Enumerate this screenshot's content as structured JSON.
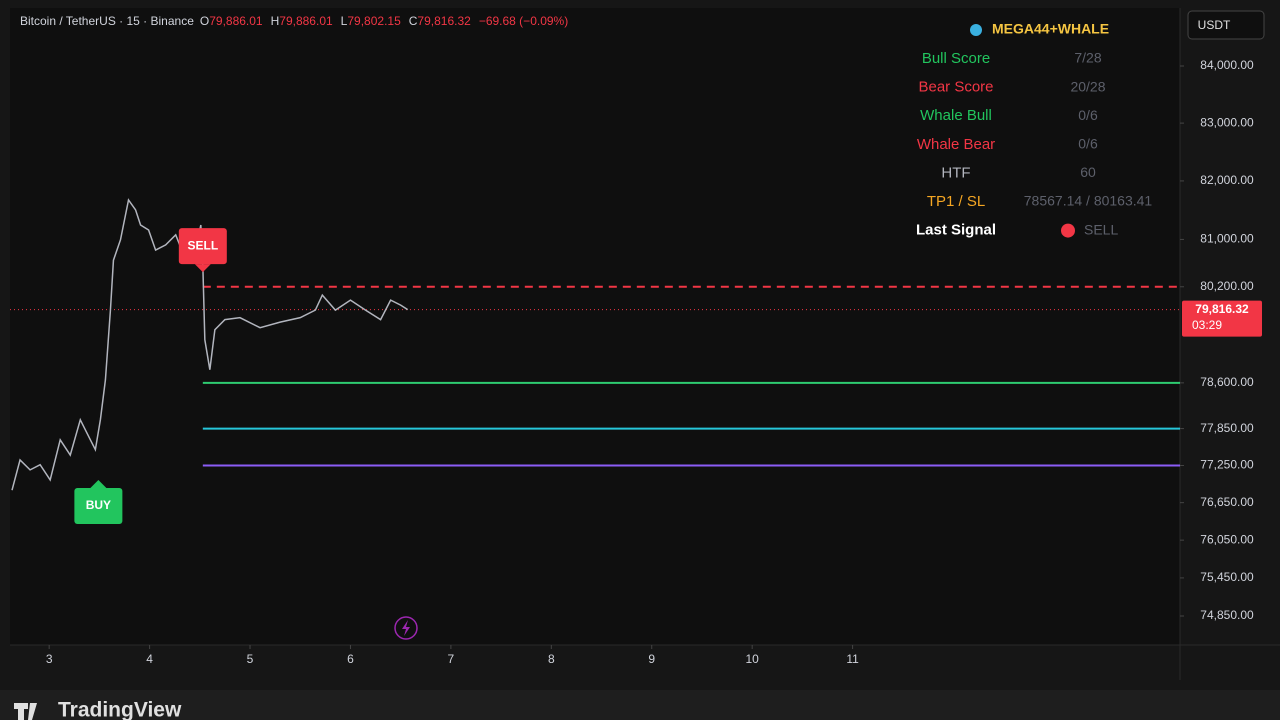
{
  "header": {
    "symbol": "Bitcoin / TetherUS · 15 · Binance",
    "ohlc": [
      {
        "key": "O",
        "value": "79,886.01"
      },
      {
        "key": "H",
        "value": "79,886.01"
      },
      {
        "key": "L",
        "value": "79,802.15"
      },
      {
        "key": "C",
        "value": "79,816.32"
      }
    ],
    "change": "−69.68 (−0.09%)"
  },
  "currency": "USDT",
  "panel": {
    "title": "MEGA44+WHALE",
    "rows": [
      {
        "label": "Bull Score",
        "value": "7/28",
        "color": "#22c55e"
      },
      {
        "label": "Bear Score",
        "value": "20/28",
        "color": "#f23645"
      },
      {
        "label": "Whale Bull",
        "value": "0/6",
        "color": "#22c55e"
      },
      {
        "label": "Whale Bear",
        "value": "0/6",
        "color": "#f23645"
      },
      {
        "label": "HTF",
        "value": "60",
        "color": "#b2b5be"
      },
      {
        "label": "TP1 / SL",
        "value": "78567.14 / 80163.41",
        "color": "#f5a623"
      },
      {
        "label": "Last Signal",
        "value": "SELL",
        "color": "#ffffff"
      }
    ]
  },
  "chart_data": {
    "type": "line",
    "log_scale": true,
    "xlim": [
      2.61,
      14.26
    ],
    "xticks": [
      3,
      4,
      5,
      6,
      7,
      8,
      9,
      10,
      11
    ],
    "ylim": [
      74396,
      85028
    ],
    "yticks": [
      {
        "value": 84000,
        "label": "84,000.00"
      },
      {
        "value": 83000,
        "label": "83,000.00"
      },
      {
        "value": 82000,
        "label": "82,000.00"
      },
      {
        "value": 81000,
        "label": "81,000.00"
      },
      {
        "value": 80200,
        "label": "80,200.00"
      },
      {
        "value": 78600,
        "label": "78,600.00"
      },
      {
        "value": 77850,
        "label": "77,850.00"
      },
      {
        "value": 77250,
        "label": "77,250.00"
      },
      {
        "value": 76650,
        "label": "76,650.00"
      },
      {
        "value": 76050,
        "label": "76,050.00"
      },
      {
        "value": 75450,
        "label": "75,450.00"
      },
      {
        "value": 74850,
        "label": "74,850.00"
      }
    ],
    "series": [
      {
        "color": "#b2b5be",
        "x": [
          2.63,
          2.71,
          2.81,
          2.91,
          3.01,
          3.11,
          3.21,
          3.31,
          3.41,
          3.46,
          3.51,
          3.56,
          3.61,
          3.64,
          3.71,
          3.79,
          3.86,
          3.91,
          3.99,
          4.06,
          4.16,
          4.26,
          4.36,
          4.46,
          4.51,
          4.53,
          4.55,
          4.6,
          4.65,
          4.75,
          4.9,
          5.1,
          5.3,
          5.5,
          5.65,
          5.72,
          5.85,
          6.0,
          6.15,
          6.3,
          6.4,
          6.5,
          6.57
        ],
        "values": [
          76851,
          77340,
          77179,
          77263,
          77016,
          77667,
          77419,
          77994,
          77667,
          77507,
          77994,
          78649,
          79808,
          80648,
          80993,
          81673,
          81505,
          81245,
          81161,
          80819,
          80907,
          81078,
          80648,
          80819,
          81245,
          80564,
          79313,
          78817,
          79481,
          79649,
          79682,
          79514,
          79607,
          79682,
          79808,
          80060,
          79808,
          79976,
          79808,
          79649,
          79976,
          79892,
          79816.32
        ]
      }
    ],
    "levels": [
      {
        "value": 80200,
        "color": "#f23645",
        "dashed": true,
        "start": 4.53
      },
      {
        "value": 78600,
        "color": "#2ecc71",
        "dashed": false,
        "start": 4.53
      },
      {
        "value": 77850,
        "color": "#26c6da",
        "dashed": false,
        "start": 4.53
      },
      {
        "value": 77250,
        "color": "#8b5cf6",
        "dashed": false,
        "start": 4.53
      }
    ],
    "signals": [
      {
        "label": "BUY",
        "x": 3.49,
        "y": 77016,
        "color": "#22c55e"
      },
      {
        "label": "SELL",
        "x": 4.53,
        "y": 80447,
        "color": "#f23645"
      }
    ],
    "last_price": {
      "value": 79816.32,
      "label": "79,816.32"
    },
    "countdown": "03:29"
  },
  "brand": "TradingView"
}
